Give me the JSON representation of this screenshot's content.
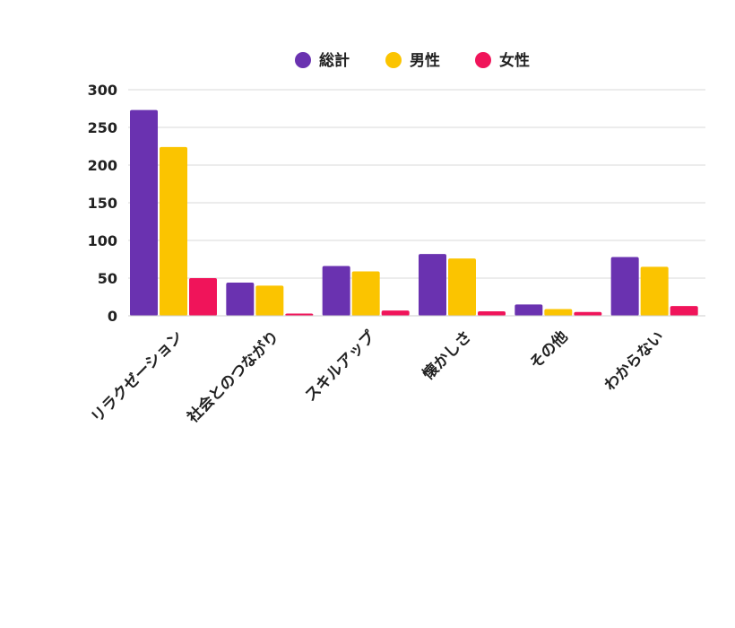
{
  "chart_data": {
    "type": "bar",
    "categories": [
      "リラクゼーション",
      "社会とのつながり",
      "スキルアップ",
      "懐かしさ",
      "その他",
      "わからない"
    ],
    "series": [
      {
        "name": "総計",
        "color": "#6a32b0",
        "values": [
          273,
          44,
          66,
          82,
          15,
          78
        ]
      },
      {
        "name": "男性",
        "color": "#fbc400",
        "values": [
          224,
          40,
          59,
          76,
          9,
          65
        ]
      },
      {
        "name": "女性",
        "color": "#f0145a",
        "values": [
          50,
          3,
          7,
          6,
          5,
          13
        ]
      }
    ],
    "y_ticks": [
      "0",
      "50",
      "100",
      "150",
      "200",
      "250",
      "300"
    ],
    "ylim": [
      0,
      300
    ],
    "grid": true,
    "legend_position": "top-center",
    "title": "",
    "xlabel": "",
    "ylabel": ""
  }
}
